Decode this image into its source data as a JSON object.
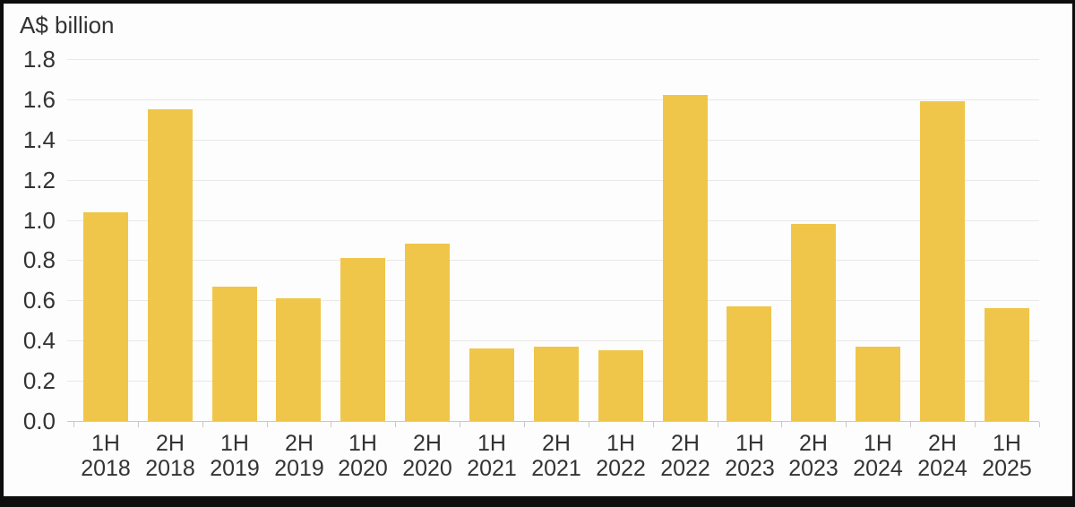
{
  "chart_data": {
    "type": "bar",
    "title": "A$ billion",
    "categories": [
      "1H 2018",
      "2H 2018",
      "1H 2019",
      "2H 2019",
      "1H 2020",
      "2H 2020",
      "1H 2021",
      "2H 2021",
      "1H 2022",
      "2H 2022",
      "1H 2023",
      "2H 2023",
      "1H 2024",
      "2H 2024",
      "1H 2025"
    ],
    "values": [
      1.04,
      1.55,
      0.67,
      0.61,
      0.81,
      0.88,
      0.36,
      0.37,
      0.35,
      1.62,
      0.57,
      0.98,
      0.37,
      1.59,
      0.56
    ],
    "xlabel": "",
    "ylabel": "A$ billion",
    "ylim": [
      0,
      1.8
    ],
    "ytick_step": 0.2,
    "ytick_labels": [
      "1.8",
      "1.6",
      "1.4",
      "1.2",
      "1.0",
      "0.8",
      "0.6",
      "0.4",
      "0.2",
      "0.0"
    ],
    "grid": true,
    "legend": "none",
    "bar_color": "#F0C64A",
    "gridline_color": "#e8e8e8",
    "axis_color": "#c9c9c9",
    "tick_color": "#c9c9c9",
    "text_color": "#333333",
    "frame_color": "#0e0e0e",
    "background_color": "#fdfdfd"
  }
}
